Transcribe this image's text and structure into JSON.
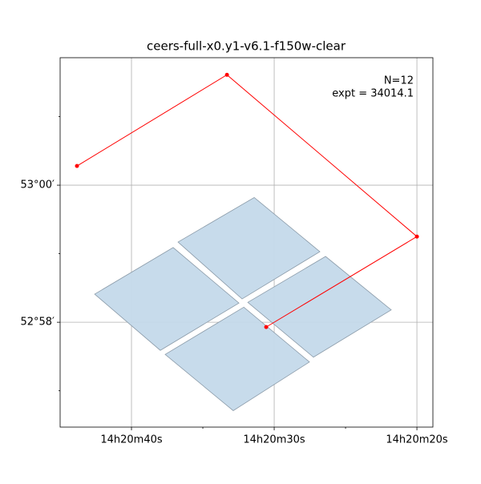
{
  "chart_data": {
    "type": "footprint",
    "title": "ceers-full-x0.y1-v6.1-f150w-clear",
    "annotations": [
      "N=12",
      "expt = 34014.1"
    ],
    "xlim": [
      45.0,
      18.88
    ],
    "ylim": [
      56.47,
      61.86
    ],
    "xticks": [
      {
        "value": 40,
        "label": "14h20m40s"
      },
      {
        "value": 30,
        "label": "14h20m30s"
      },
      {
        "value": 20,
        "label": "14h20m20s"
      }
    ],
    "yticks": [
      {
        "value": 60,
        "label": "53°00′"
      },
      {
        "value": 58,
        "label": "52°58′"
      }
    ],
    "x_minor_ticks": [
      35,
      25
    ],
    "y_minor_ticks": [
      61,
      59,
      57
    ],
    "grid": true,
    "footprints": {
      "color": "#c4d9ea",
      "polygons": [
        {
          "x": [
            36.74,
            31.4,
            26.8,
            32.25
          ],
          "y": [
            59.17,
            59.82,
            59.03,
            58.34
          ]
        },
        {
          "x": [
            42.58,
            37.08,
            32.47,
            37.98
          ],
          "y": [
            58.41,
            59.09,
            58.28,
            57.59
          ]
        },
        {
          "x": [
            31.85,
            26.4,
            21.8,
            27.25
          ],
          "y": [
            58.29,
            58.96,
            58.18,
            57.49
          ]
        },
        {
          "x": [
            37.64,
            32.13,
            27.53,
            32.87
          ],
          "y": [
            57.53,
            58.22,
            57.42,
            56.71
          ]
        }
      ]
    },
    "track": {
      "color": "#ff0000",
      "x": [
        43.82,
        33.31,
        20.0,
        30.56
      ],
      "y": [
        60.28,
        61.61,
        59.25,
        57.93
      ]
    }
  }
}
